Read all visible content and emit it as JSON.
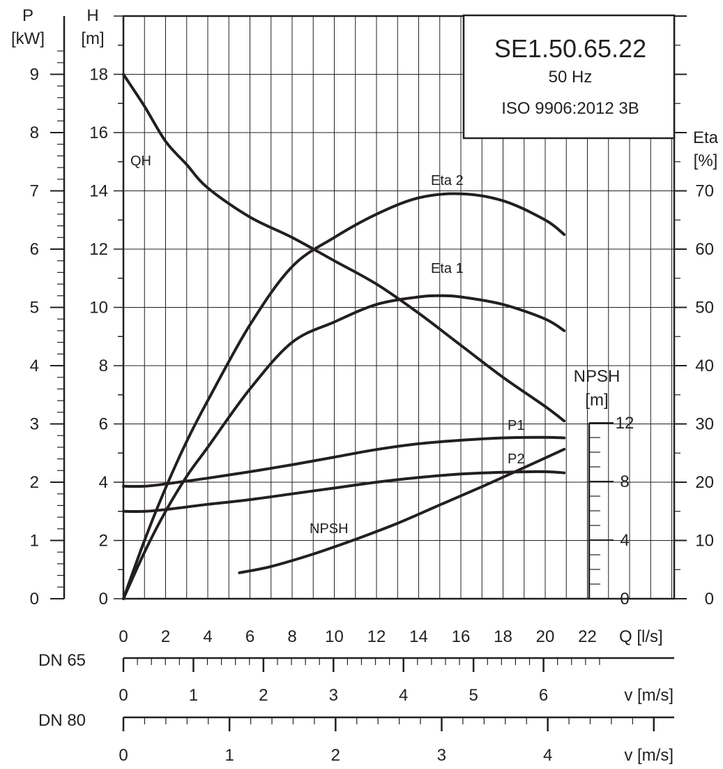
{
  "chart_data": {
    "type": "line",
    "info_box": {
      "model": "SE1.50.65.22",
      "frequency": "50 Hz",
      "standard": "ISO 9906:2012 3B"
    },
    "axes": {
      "x": {
        "label": "Q [l/s]",
        "range": [
          0,
          22
        ],
        "ticks": [
          "0",
          "2",
          "4",
          "6",
          "8",
          "10",
          "12",
          "14",
          "16",
          "18",
          "20",
          "22"
        ]
      },
      "H": {
        "label_top": "H",
        "label_unit": "[m]",
        "range": [
          0,
          20
        ],
        "ticks": [
          "0",
          "2",
          "4",
          "6",
          "8",
          "10",
          "12",
          "14",
          "16",
          "18"
        ]
      },
      "P": {
        "label_top": "P",
        "label_unit": "[kW]",
        "range": [
          0,
          10
        ],
        "ticks": [
          "0",
          "1",
          "2",
          "3",
          "4",
          "5",
          "6",
          "7",
          "8",
          "9"
        ]
      },
      "Eta": {
        "label_top": "Eta",
        "label_unit": "[%]",
        "range": [
          0,
          100
        ],
        "ticks": [
          "0",
          "10",
          "20",
          "30",
          "40",
          "50",
          "60",
          "70"
        ]
      },
      "NPSH": {
        "label_top": "NPSH",
        "label_unit": "[m]",
        "range": [
          0,
          12
        ],
        "ticks": [
          "0",
          "4",
          "8",
          "12"
        ]
      }
    },
    "velocity_scales": [
      {
        "name": "DN 65",
        "label": "v [m/s]",
        "max_v": 6.8,
        "q_per_v": 3.32,
        "ticks": [
          "0",
          "1",
          "2",
          "3",
          "4",
          "5",
          "6"
        ]
      },
      {
        "name": "DN 80",
        "label": "v [m/s]",
        "max_v": 5.1,
        "q_per_v": 5.03,
        "ticks": [
          "0",
          "1",
          "2",
          "3",
          "4"
        ]
      }
    ],
    "series": [
      {
        "name": "QH",
        "axis": "H",
        "x": [
          0,
          1,
          2,
          3,
          4,
          6,
          8,
          10,
          12,
          14,
          16,
          18,
          20,
          20.9
        ],
        "values": [
          18,
          16.9,
          15.7,
          14.9,
          14.1,
          13.1,
          12.4,
          11.6,
          10.8,
          9.8,
          8.7,
          7.6,
          6.6,
          6.1
        ]
      },
      {
        "name": "Eta 1",
        "axis": "Eta",
        "x": [
          0,
          1,
          2,
          3,
          4,
          6,
          8,
          10,
          12,
          14,
          15,
          16,
          18,
          20,
          20.9
        ],
        "values": [
          0,
          8,
          15,
          21,
          26,
          36,
          44,
          47.5,
          50.5,
          51.8,
          52,
          51.8,
          50.5,
          48,
          46
        ]
      },
      {
        "name": "Eta 2",
        "axis": "Eta",
        "x": [
          0,
          1,
          2,
          3,
          4,
          6,
          8,
          10,
          12,
          14,
          16,
          18,
          20,
          20.9
        ],
        "values": [
          0,
          10,
          19,
          27,
          34,
          47,
          57,
          62,
          66,
          68.8,
          69.5,
          68.3,
          65,
          62.5
        ]
      },
      {
        "name": "P1",
        "axis": "P",
        "x": [
          0,
          1,
          2,
          4,
          6,
          8,
          10,
          12,
          14,
          16,
          18,
          20,
          20.9
        ],
        "values": [
          1.93,
          1.93,
          1.97,
          2.07,
          2.18,
          2.3,
          2.43,
          2.56,
          2.66,
          2.72,
          2.76,
          2.77,
          2.76
        ]
      },
      {
        "name": "P2",
        "axis": "P",
        "x": [
          0,
          1,
          2,
          4,
          6,
          8,
          10,
          12,
          14,
          16,
          18,
          20,
          20.9
        ],
        "values": [
          1.5,
          1.5,
          1.53,
          1.62,
          1.7,
          1.8,
          1.9,
          2,
          2.08,
          2.14,
          2.17,
          2.18,
          2.16
        ]
      },
      {
        "name": "NPSH",
        "axis": "NPSH",
        "x": [
          5.5,
          7,
          9,
          11,
          13,
          15,
          17,
          19,
          20.9
        ],
        "values": [
          1.77,
          2.2,
          3.05,
          4.05,
          5.15,
          6.4,
          7.65,
          8.95,
          10.2
        ]
      }
    ]
  }
}
